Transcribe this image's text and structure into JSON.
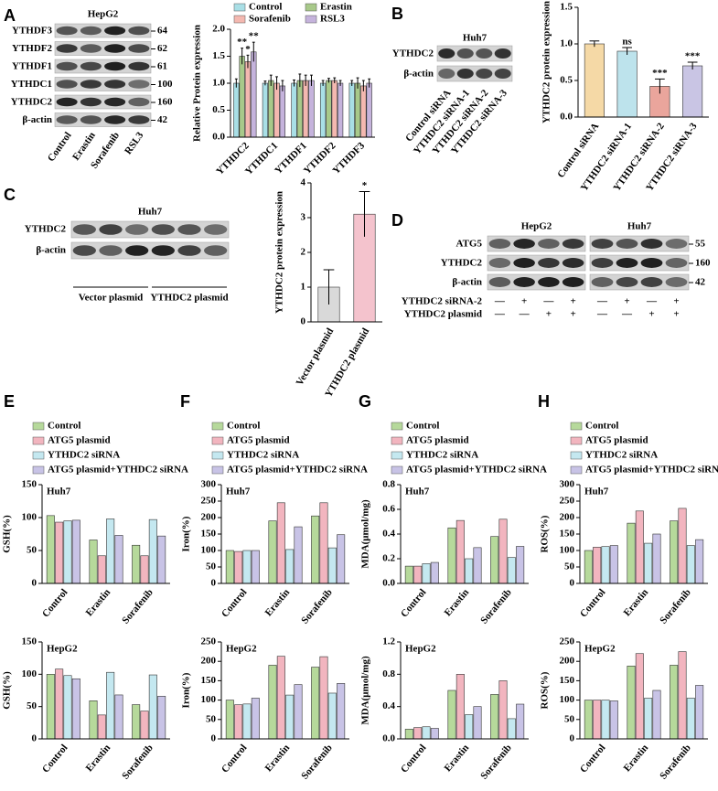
{
  "panels": [
    "A",
    "B",
    "C",
    "D",
    "E",
    "F",
    "G",
    "H"
  ],
  "blots": [
    {
      "title": "HepG2",
      "rows": [
        "YTHDF3",
        "YTHDF2",
        "YTHDF1",
        "YTHDC1",
        "YTHDC2",
        "β-actin"
      ],
      "kda": [
        64,
        62,
        61,
        100,
        160,
        42
      ],
      "lanes": [
        "Control",
        "Erastin",
        "Sorafenib",
        "RSL3"
      ]
    },
    {
      "title": "Huh7",
      "rows": [
        "YTHDC2",
        "β-actin"
      ],
      "lanes": [
        "Control siRNA",
        "YTHDC2 siRNA-1",
        "YTHDC2 siRNA-2",
        "YTHDC2 siRNA-3"
      ]
    },
    {
      "title": "Huh7",
      "rows": [
        "YTHDC2",
        "β-actin"
      ],
      "groups": [
        "Vector plasmid",
        "YTHDC2 plasmid"
      ]
    },
    {
      "titles": [
        "HepG2",
        "Huh7"
      ],
      "rows": [
        "ATG5",
        "YTHDC2",
        "β-actin"
      ],
      "kda": [
        55,
        160,
        42
      ],
      "conditions": [
        {
          "label": "YTHDC2 siRNA-2",
          "signs": [
            "—",
            "+",
            "—",
            "+",
            "—",
            "+",
            "—",
            "+"
          ]
        },
        {
          "label": "YTHDC2 plasmid",
          "signs": [
            "—",
            "—",
            "+",
            "+",
            "—",
            "—",
            "+",
            "+"
          ]
        }
      ]
    }
  ],
  "chart_data": [
    {
      "type": "bar",
      "ylabel": "Relative Protein expression",
      "categories": [
        "YTHDC2",
        "YTHDC1",
        "YTHDF1",
        "YTHDF2",
        "YTHDF3"
      ],
      "ylim": [
        0,
        2
      ],
      "yticks": [
        {
          "value": 0,
          "label": "0.0"
        },
        0.5,
        {
          "value": 1,
          "label": "1.0"
        },
        1.5,
        {
          "value": 2,
          "label": "2.0"
        }
      ],
      "legend": "top",
      "series": [
        {
          "name": "Control",
          "color": "#a9dfe6",
          "values": [
            1,
            1,
            1,
            1,
            1
          ],
          "errors": [
            0.08,
            0.04,
            0.06,
            0.05,
            0.05
          ],
          "significance": [
            null,
            null,
            null,
            null,
            null
          ]
        },
        {
          "name": "Erastin",
          "color": "#a8c98a",
          "values": [
            1.5,
            1.05,
            1.05,
            1.05,
            1.0
          ],
          "errors": [
            0.15,
            0.1,
            0.12,
            0.04,
            0.1
          ],
          "significance": [
            "**",
            null,
            null,
            null,
            null
          ]
        },
        {
          "name": "Sorafenib",
          "color": "#f4b8b0",
          "values": [
            1.4,
            1.0,
            1.05,
            1.05,
            0.95
          ],
          "errors": [
            0.12,
            0.12,
            0.1,
            0.05,
            0.1
          ],
          "significance": [
            "*",
            null,
            null,
            null,
            null
          ]
        },
        {
          "name": "RSL3",
          "color": "#c5b3dc",
          "values": [
            1.58,
            0.95,
            1.05,
            1.0,
            1.0
          ],
          "errors": [
            0.18,
            0.1,
            0.1,
            0.05,
            0.08
          ],
          "significance": [
            "**",
            null,
            null,
            null,
            null
          ]
        }
      ]
    },
    {
      "type": "bar",
      "ylabel": "YTHDC2 protein expression",
      "categories": [
        "Control siRNA",
        "YTHDC2 siRNA-1",
        "YTHDC2 siRNA-2",
        "YTHDC2 siRNA-3"
      ],
      "values": [
        1.0,
        0.9,
        0.42,
        0.7
      ],
      "errors": [
        0.04,
        0.05,
        0.1,
        0.05
      ],
      "colors": [
        "#f5d9a6",
        "#bde3ec",
        "#eaa59c",
        "#c9c5e4"
      ],
      "significance": [
        null,
        "ns",
        "***",
        "***"
      ],
      "ylim": [
        0,
        1.5
      ],
      "yticks": [
        {
          "value": 0,
          "label": "0.0"
        },
        0.5,
        {
          "value": 1,
          "label": "1.0"
        },
        1.5
      ]
    },
    {
      "type": "bar",
      "ylabel": "YTHDC2 protein expression",
      "categories": [
        "Vector plasmid",
        "YTHDC2 plasmid"
      ],
      "values": [
        1.0,
        3.1
      ],
      "errors": [
        0.5,
        0.65
      ],
      "colors": [
        "#d9d9d9",
        "#f4c3cd"
      ],
      "significance": [
        null,
        "*"
      ],
      "ylim": [
        0,
        4
      ],
      "yticks": [
        0,
        1,
        2,
        3,
        4
      ]
    },
    {
      "type": "bar",
      "title": "Huh7",
      "ylabel": "GSH(%)",
      "categories": [
        "Control",
        "Erastin",
        "Sorafenib"
      ],
      "ylim": [
        0,
        150
      ],
      "yticks": [
        0,
        50,
        100,
        150
      ],
      "legend": "top",
      "series": [
        {
          "name": "Control",
          "color": "#b6d99b",
          "values": [
            103,
            66,
            58
          ]
        },
        {
          "name": "ATG5 plasmid",
          "color": "#f2b5bf",
          "values": [
            93,
            42,
            42
          ]
        },
        {
          "name": "YTHDC2 siRNA",
          "color": "#c4e8f0",
          "values": [
            95,
            98,
            97
          ]
        },
        {
          "name": "ATG5 plasmid+YTHDC2 siRNA",
          "color": "#c8c3e6",
          "values": [
            96,
            73,
            72
          ]
        }
      ]
    },
    {
      "type": "bar",
      "title": "HepG2",
      "ylabel": "GSH(%)",
      "categories": [
        "Control",
        "Erastin",
        "Sorafenib"
      ],
      "ylim": [
        0,
        150
      ],
      "yticks": [
        0,
        50,
        100,
        150
      ],
      "series": [
        {
          "color": "#b6d99b",
          "values": [
            100,
            59,
            53
          ]
        },
        {
          "color": "#f2b5bf",
          "values": [
            108,
            37,
            43
          ]
        },
        {
          "color": "#c4e8f0",
          "values": [
            98,
            103,
            99
          ]
        },
        {
          "color": "#c8c3e6",
          "values": [
            93,
            68,
            66
          ]
        }
      ]
    },
    {
      "type": "bar",
      "title": "Huh7",
      "ylabel": "Iron(%)",
      "categories": [
        "Control",
        "Erastin",
        "Sorafenib"
      ],
      "ylim": [
        0,
        300
      ],
      "yticks": [
        0,
        50,
        100,
        150,
        200,
        250,
        300
      ],
      "legend": "top",
      "series": [
        {
          "name": "Control",
          "color": "#b6d99b",
          "values": [
            100,
            190,
            205
          ]
        },
        {
          "name": "ATG5 plasmid",
          "color": "#f2b5bf",
          "values": [
            97,
            245,
            245
          ]
        },
        {
          "name": "YTHDC2 siRNA",
          "color": "#c4e8f0",
          "values": [
            100,
            103,
            108
          ]
        },
        {
          "name": "ATG5 plasmid+YTHDC2 siRNA",
          "color": "#c8c3e6",
          "values": [
            100,
            172,
            148
          ]
        }
      ]
    },
    {
      "type": "bar",
      "title": "HepG2",
      "ylabel": "Iron(%)",
      "categories": [
        "Control",
        "Erastin",
        "Sorafenib"
      ],
      "ylim": [
        0,
        250
      ],
      "yticks": [
        0,
        50,
        100,
        150,
        200,
        250
      ],
      "series": [
        {
          "color": "#b6d99b",
          "values": [
            100,
            190,
            185
          ]
        },
        {
          "color": "#f2b5bf",
          "values": [
            88,
            213,
            212
          ]
        },
        {
          "color": "#c4e8f0",
          "values": [
            90,
            113,
            118
          ]
        },
        {
          "color": "#c8c3e6",
          "values": [
            105,
            140,
            143
          ]
        }
      ]
    },
    {
      "type": "bar",
      "title": "Huh7",
      "ylabel": "MDA(μmol/mg)",
      "categories": [
        "Control",
        "Erastin",
        "Sorafenib"
      ],
      "ylim": [
        0,
        0.8
      ],
      "yticks": [
        {
          "value": 0,
          "label": "0.0"
        },
        0.2,
        0.4,
        0.6,
        0.8
      ],
      "legend": "top",
      "series": [
        {
          "name": "Control",
          "color": "#b6d99b",
          "values": [
            0.14,
            0.45,
            0.38
          ]
        },
        {
          "name": "ATG5 plasmid",
          "color": "#f2b5bf",
          "values": [
            0.14,
            0.51,
            0.52
          ]
        },
        {
          "name": "YTHDC2 siRNA",
          "color": "#c4e8f0",
          "values": [
            0.16,
            0.2,
            0.21
          ]
        },
        {
          "name": "ATG5 plasmid+YTHDC2 siRNA",
          "color": "#c8c3e6",
          "values": [
            0.17,
            0.29,
            0.3
          ]
        }
      ]
    },
    {
      "type": "bar",
      "title": "HepG2",
      "ylabel": "MDA(μmol/mg)",
      "categories": [
        "Control",
        "Erastin",
        "Sorafenib"
      ],
      "ylim": [
        0,
        1.2
      ],
      "yticks": [
        {
          "value": 0,
          "label": "0.0"
        },
        0.4,
        0.8,
        1.2
      ],
      "series": [
        {
          "color": "#b6d99b",
          "values": [
            0.12,
            0.6,
            0.55
          ]
        },
        {
          "color": "#f2b5bf",
          "values": [
            0.14,
            0.8,
            0.72
          ]
        },
        {
          "color": "#c4e8f0",
          "values": [
            0.15,
            0.3,
            0.25
          ]
        },
        {
          "color": "#c8c3e6",
          "values": [
            0.13,
            0.4,
            0.43
          ]
        }
      ]
    },
    {
      "type": "bar",
      "title": "Huh7",
      "ylabel": "ROS(%)",
      "categories": [
        "Control",
        "Erastin",
        "Sorafenib"
      ],
      "ylim": [
        0,
        300
      ],
      "yticks": [
        0,
        50,
        100,
        150,
        200,
        250,
        300
      ],
      "legend": "top",
      "series": [
        {
          "name": "Control",
          "color": "#b6d99b",
          "values": [
            100,
            183,
            190
          ]
        },
        {
          "name": "ATG5 plasmid",
          "color": "#f2b5bf",
          "values": [
            110,
            220,
            228
          ]
        },
        {
          "name": "YTHDC2 siRNA",
          "color": "#c4e8f0",
          "values": [
            112,
            122,
            115
          ]
        },
        {
          "name": "ATG5 plasmid+YTHDC2 siRNA",
          "color": "#c8c3e6",
          "values": [
            115,
            150,
            133
          ]
        }
      ]
    },
    {
      "type": "bar",
      "title": "HepG2",
      "ylabel": "ROS(%)",
      "categories": [
        "Control",
        "Erastin",
        "Sorafenib"
      ],
      "ylim": [
        0,
        250
      ],
      "yticks": [
        0,
        50,
        100,
        150,
        200,
        250
      ],
      "series": [
        {
          "color": "#b6d99b",
          "values": [
            100,
            188,
            190
          ]
        },
        {
          "color": "#f2b5bf",
          "values": [
            100,
            220,
            225
          ]
        },
        {
          "color": "#c4e8f0",
          "values": [
            100,
            105,
            105
          ]
        },
        {
          "color": "#c8c3e6",
          "values": [
            98,
            125,
            138
          ]
        }
      ]
    }
  ]
}
